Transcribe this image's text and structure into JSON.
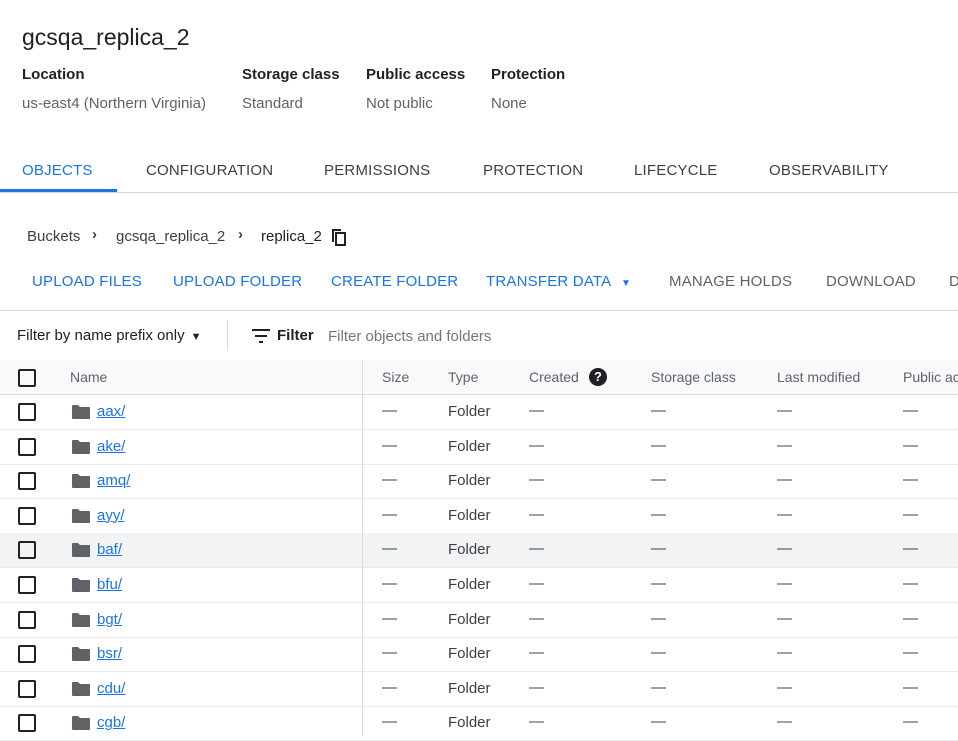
{
  "bucket": {
    "title": "gcsqa_replica_2",
    "details": [
      {
        "label": "Location",
        "value": "us-east4 (Northern Virginia)"
      },
      {
        "label": "Storage class",
        "value": "Standard"
      },
      {
        "label": "Public access",
        "value": "Not public"
      },
      {
        "label": "Protection",
        "value": "None"
      }
    ]
  },
  "tabs": [
    "OBJECTS",
    "CONFIGURATION",
    "PERMISSIONS",
    "PROTECTION",
    "LIFECYCLE",
    "OBSERVABILITY"
  ],
  "breadcrumb": [
    "Buckets",
    "gcsqa_replica_2",
    "replica_2"
  ],
  "toolbar": [
    "UPLOAD FILES",
    "UPLOAD FOLDER",
    "CREATE FOLDER",
    "TRANSFER DATA",
    "MANAGE HOLDS",
    "DOWNLOAD",
    "D"
  ],
  "filter": {
    "mode": "Filter by name prefix only",
    "label": "Filter",
    "placeholder": "Filter objects and folders"
  },
  "columns": [
    "Name",
    "Size",
    "Type",
    "Created",
    "Storage class",
    "Last modified",
    "Public ac"
  ],
  "rows": [
    {
      "name": "aax/",
      "size": "—",
      "type": "Folder",
      "created": "—",
      "storage": "—",
      "modified": "—",
      "public": "—"
    },
    {
      "name": "ake/",
      "size": "—",
      "type": "Folder",
      "created": "—",
      "storage": "—",
      "modified": "—",
      "public": "—"
    },
    {
      "name": "amq/",
      "size": "—",
      "type": "Folder",
      "created": "—",
      "storage": "—",
      "modified": "—",
      "public": "—"
    },
    {
      "name": "ayy/",
      "size": "—",
      "type": "Folder",
      "created": "—",
      "storage": "—",
      "modified": "—",
      "public": "—"
    },
    {
      "name": "baf/",
      "size": "—",
      "type": "Folder",
      "created": "—",
      "storage": "—",
      "modified": "—",
      "public": "—",
      "hover": true
    },
    {
      "name": "bfu/",
      "size": "—",
      "type": "Folder",
      "created": "—",
      "storage": "—",
      "modified": "—",
      "public": "—"
    },
    {
      "name": "bgt/",
      "size": "—",
      "type": "Folder",
      "created": "—",
      "storage": "—",
      "modified": "—",
      "public": "—"
    },
    {
      "name": "bsr/",
      "size": "—",
      "type": "Folder",
      "created": "—",
      "storage": "—",
      "modified": "—",
      "public": "—"
    },
    {
      "name": "cdu/",
      "size": "—",
      "type": "Folder",
      "created": "—",
      "storage": "—",
      "modified": "—",
      "public": "—"
    },
    {
      "name": "cgb/",
      "size": "—",
      "type": "Folder",
      "created": "—",
      "storage": "—",
      "modified": "—",
      "public": "—"
    }
  ],
  "colors": {
    "accent": "#1a73e8"
  }
}
